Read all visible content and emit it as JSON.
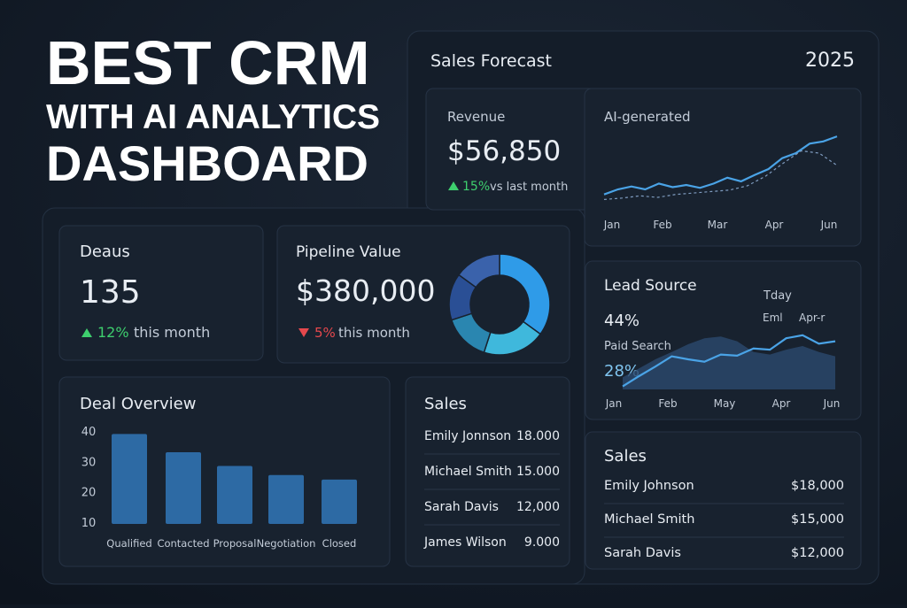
{
  "hero": {
    "line1": "BEST CRM",
    "line2": "WITH AI ANALYTICS",
    "line3": "DASHBOARD"
  },
  "forecast": {
    "title": "Sales Forecast",
    "year": "2025",
    "revenue_label": "Revenue",
    "revenue": "$56,850",
    "change": "15%",
    "change_note": "vs last month",
    "chart": {
      "type": "line",
      "title": "AI-generated",
      "categories": [
        "Jan",
        "Feb",
        "Mar",
        "Apr",
        "Jun"
      ],
      "ylim": [
        0,
        100
      ],
      "series": [
        {
          "color": "#4aa3e6",
          "dashed": false,
          "values": [
            15,
            22,
            26,
            22,
            30,
            25,
            28,
            24,
            30,
            38,
            33,
            42,
            50,
            65,
            72,
            85,
            88,
            95
          ]
        },
        {
          "color": "#7f9cc0",
          "dashed": true,
          "values": [
            8,
            10,
            13,
            11,
            15,
            17,
            19,
            21,
            27,
            40,
            58,
            75,
            72,
            55
          ]
        }
      ]
    }
  },
  "deals": {
    "title": "Deaus",
    "value": "135",
    "change": "12%",
    "change_note": "this month"
  },
  "pipeline": {
    "title": "Pipeline Value",
    "value": "$380,000",
    "change": "5%",
    "change_note": "this month",
    "chart": {
      "type": "pie",
      "values": [
        35,
        20,
        15,
        15,
        15
      ],
      "colors": [
        "#2f9be8",
        "#3fb8dc",
        "#2a86b0",
        "#2a4f95",
        "#3a62ab"
      ]
    }
  },
  "lead_source": {
    "title": "Lead Source",
    "labels": [
      "Tday",
      "Eml",
      "Apr-r"
    ],
    "share1": "44%",
    "channel": "Paid Search",
    "share2": "28%",
    "chart": {
      "type": "line",
      "categories": [
        "Jan",
        "Feb",
        "May",
        "Apr",
        "Jun"
      ],
      "ylim": [
        0,
        100
      ],
      "series": [
        {
          "color": "#2c4a6e",
          "area": true,
          "values": [
            20,
            35,
            50,
            62,
            75,
            85,
            88,
            80,
            62,
            58,
            66,
            72,
            62,
            55
          ]
        },
        {
          "color": "#4aa3e6",
          "area": false,
          "values": [
            5,
            22,
            38,
            55,
            50,
            46,
            58,
            56,
            68,
            66,
            85,
            90,
            76,
            80
          ]
        }
      ]
    }
  },
  "deal_overview": {
    "title": "Deal Overview",
    "chart": {
      "type": "bar",
      "categories": [
        "Qualified",
        "Contacted",
        "Proposal",
        "Negotiation",
        "Closed"
      ],
      "values": [
        39,
        33,
        28.5,
        25.5,
        24
      ],
      "color": "#2d6aa4",
      "ylim": [
        10,
        40
      ],
      "yticks": [
        10,
        20,
        30,
        40
      ]
    }
  },
  "sales": {
    "title": "Sales",
    "rows": [
      [
        "Emily Jonnson",
        "18.000"
      ],
      [
        "Michael Smith",
        "15.000"
      ],
      [
        "Sarah Davis",
        "12,000"
      ],
      [
        "James Wilson",
        "9.000"
      ]
    ]
  },
  "sales2": {
    "title": "Sales",
    "rows": [
      [
        "Emily Johnson",
        "$18,000"
      ],
      [
        "Michael Smith",
        "$15,000"
      ],
      [
        "Sarah Davis",
        "$12,000"
      ]
    ]
  }
}
